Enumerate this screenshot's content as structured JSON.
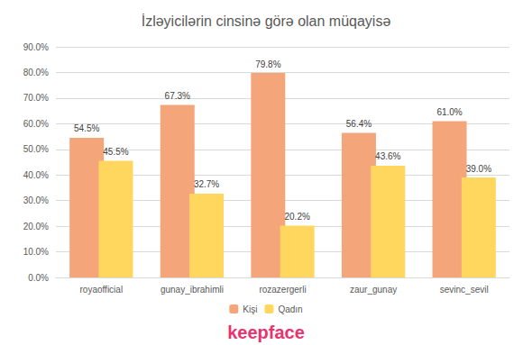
{
  "chart_data": {
    "type": "bar",
    "title": "İzləyicilərin cinsinə görə olan müqayisə",
    "categories": [
      "royaofficial",
      "gunay_ibrahimli",
      "rozazergerli",
      "zaur_gunay",
      "sevinc_sevil"
    ],
    "series": [
      {
        "name": "Kişi",
        "color": "#f4a57a",
        "values": [
          54.5,
          67.3,
          79.8,
          56.4,
          61.0
        ],
        "value_labels": [
          "54.5%",
          "67.3%",
          "79.8%",
          "56.4%",
          "61.0%"
        ]
      },
      {
        "name": "Qadın",
        "color": "#ffd75e",
        "values": [
          45.5,
          32.7,
          20.2,
          43.6,
          39.0
        ],
        "value_labels": [
          "45.5%",
          "32.7%",
          "20.2%",
          "43.6%",
          "39.0%"
        ]
      }
    ],
    "ylim": [
      0,
      90
    ],
    "yticks": [
      {
        "value": 0,
        "label": "0.0%"
      },
      {
        "value": 10,
        "label": "10.0%"
      },
      {
        "value": 20,
        "label": "20.0%"
      },
      {
        "value": 30,
        "label": "30.0%"
      },
      {
        "value": 40,
        "label": "40.0%"
      },
      {
        "value": 50,
        "label": "50.0%"
      },
      {
        "value": 60,
        "label": "60.0%"
      },
      {
        "value": 70,
        "label": "70.0%"
      },
      {
        "value": 80,
        "label": "80.0%"
      },
      {
        "value": 90,
        "label": "90.0%"
      }
    ],
    "grid": true,
    "legend": "bottom",
    "data_labels": true,
    "annotations": [
      "keepface"
    ]
  }
}
